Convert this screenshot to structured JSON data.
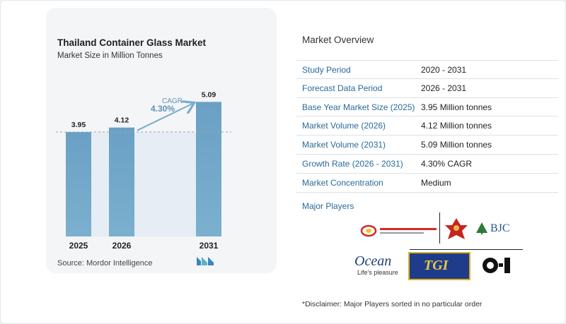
{
  "chart": {
    "title": "Thailand Container Glass Market",
    "subtitle": "Market Size in Million Tonnes",
    "source": "Source:  Mordor Intelligence",
    "cagr_label": "CAGR",
    "cagr_value": "4.30%"
  },
  "chart_data": {
    "type": "bar",
    "title": "Thailand Container Glass Market",
    "subtitle": "Market Size in Million Tonnes",
    "categories": [
      "2025",
      "2026",
      "2031"
    ],
    "values": [
      3.95,
      4.12,
      5.09
    ],
    "value_labels": [
      "3.95",
      "4.12",
      "5.09"
    ],
    "ylim": [
      0,
      5.5
    ],
    "bar_color": "#6ea4c6",
    "annotation": "CAGR 4.30%",
    "grid": false
  },
  "overview": {
    "title": "Market Overview",
    "rows": [
      {
        "label": "Study Period",
        "value": "2020 - 2031"
      },
      {
        "label": "Forecast Data Period",
        "value": "2026 - 2031"
      },
      {
        "label": "Base Year Market Size (2025)",
        "value": "3.95 Million tonnes"
      },
      {
        "label": "Market Volume (2026)",
        "value": "4.12 Million tonnes"
      },
      {
        "label": "Market Volume (2031)",
        "value": "5.09 Million tonnes"
      },
      {
        "label": "Growth Rate (2026 - 2031)",
        "value": "4.30% CAGR"
      },
      {
        "label": "Market Concentration",
        "value": "Medium"
      }
    ]
  },
  "players": {
    "title": "Major Players",
    "logos": {
      "bjc": "BJC",
      "ocean": "Ocean",
      "ocean_tag": "Life's pleasure",
      "tgi": "TGI",
      "oi": "O-I"
    }
  },
  "disclaimer": "*Disclaimer: Major Players sorted in no particular order",
  "colors": {
    "bar": "#6ea4c6",
    "accent_text": "#2a6a9a",
    "cagr_text": "#5a93b8"
  }
}
